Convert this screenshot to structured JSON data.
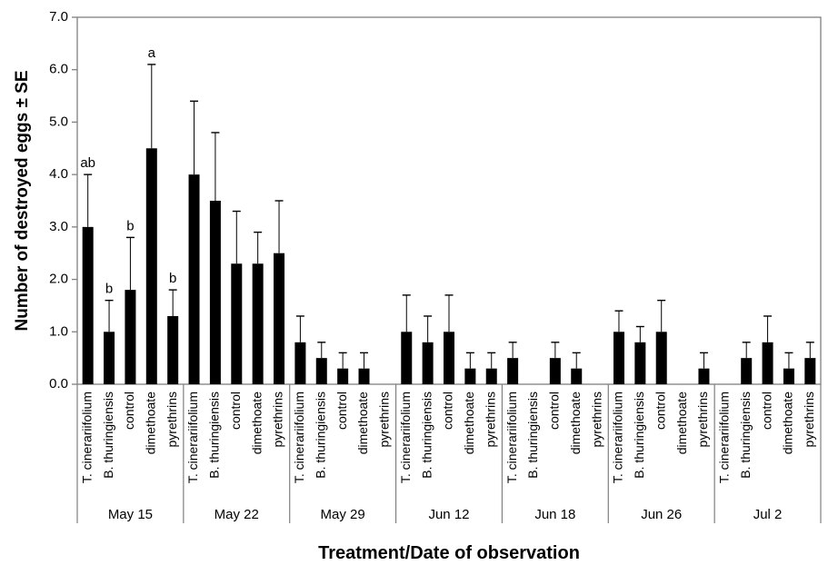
{
  "chart_data": {
    "type": "bar",
    "title": "",
    "xlabel": "Treatment/Date of observation",
    "ylabel": "Number of destroyed eggs ± SE",
    "ylim": [
      0,
      7
    ],
    "ytick_labels": [
      "0.0",
      "1.0",
      "2.0",
      "3.0",
      "4.0",
      "5.0",
      "6.0",
      "7.0"
    ],
    "grid": "off",
    "legend": "none",
    "bar_color": "#000000",
    "axis_color": "#808080",
    "error_bar_color": "#000000",
    "text_color": "#000000",
    "treatments": [
      "T. cinerariifolium",
      "B. thuringiensis",
      "control",
      "dimethoate",
      "pyrethrins"
    ],
    "groups": [
      {
        "date": "May 15",
        "bars": [
          {
            "treatment": "T. cinerariifolium",
            "value": 3.0,
            "error_top": 4.0,
            "letter": "ab"
          },
          {
            "treatment": "B. thuringiensis",
            "value": 1.0,
            "error_top": 1.6,
            "letter": "b"
          },
          {
            "treatment": "control",
            "value": 1.8,
            "error_top": 2.8,
            "letter": "b"
          },
          {
            "treatment": "dimethoate",
            "value": 4.5,
            "error_top": 6.1,
            "letter": "a"
          },
          {
            "treatment": "pyrethrins",
            "value": 1.3,
            "error_top": 1.8,
            "letter": "b"
          }
        ]
      },
      {
        "date": "May 22",
        "bars": [
          {
            "treatment": "T. cinerariifolium",
            "value": 4.0,
            "error_top": 5.4,
            "letter": ""
          },
          {
            "treatment": "B. thuringiensis",
            "value": 3.5,
            "error_top": 4.8,
            "letter": ""
          },
          {
            "treatment": "control",
            "value": 2.3,
            "error_top": 3.3,
            "letter": ""
          },
          {
            "treatment": "dimethoate",
            "value": 2.3,
            "error_top": 2.9,
            "letter": ""
          },
          {
            "treatment": "pyrethrins",
            "value": 2.5,
            "error_top": 3.5,
            "letter": ""
          }
        ]
      },
      {
        "date": "May 29",
        "bars": [
          {
            "treatment": "T. cinerariifolium",
            "value": 0.8,
            "error_top": 1.3,
            "letter": ""
          },
          {
            "treatment": "B. thuringiensis",
            "value": 0.5,
            "error_top": 0.8,
            "letter": ""
          },
          {
            "treatment": "control",
            "value": 0.3,
            "error_top": 0.6,
            "letter": ""
          },
          {
            "treatment": "dimethoate",
            "value": 0.3,
            "error_top": 0.6,
            "letter": ""
          },
          {
            "treatment": "pyrethrins",
            "value": 0,
            "error_top": null,
            "letter": ""
          }
        ]
      },
      {
        "date": "Jun 12",
        "bars": [
          {
            "treatment": "T. cinerariifolium",
            "value": 1.0,
            "error_top": 1.7,
            "letter": ""
          },
          {
            "treatment": "B. thuringiensis",
            "value": 0.8,
            "error_top": 1.3,
            "letter": ""
          },
          {
            "treatment": "control",
            "value": 1.0,
            "error_top": 1.7,
            "letter": ""
          },
          {
            "treatment": "dimethoate",
            "value": 0.3,
            "error_top": 0.6,
            "letter": ""
          },
          {
            "treatment": "pyrethrins",
            "value": 0.3,
            "error_top": 0.6,
            "letter": ""
          }
        ]
      },
      {
        "date": "Jun 18",
        "bars": [
          {
            "treatment": "T. cinerariifolium",
            "value": 0.5,
            "error_top": 0.8,
            "letter": ""
          },
          {
            "treatment": "B. thuringiensis",
            "value": 0,
            "error_top": null,
            "letter": ""
          },
          {
            "treatment": "control",
            "value": 0.5,
            "error_top": 0.8,
            "letter": ""
          },
          {
            "treatment": "dimethoate",
            "value": 0.3,
            "error_top": 0.6,
            "letter": ""
          },
          {
            "treatment": "pyrethrins",
            "value": 0,
            "error_top": null,
            "letter": ""
          }
        ]
      },
      {
        "date": "Jun 26",
        "bars": [
          {
            "treatment": "T. cinerariifolium",
            "value": 1.0,
            "error_top": 1.4,
            "letter": ""
          },
          {
            "treatment": "B. thuringiensis",
            "value": 0.8,
            "error_top": 1.1,
            "letter": ""
          },
          {
            "treatment": "control",
            "value": 1.0,
            "error_top": 1.6,
            "letter": ""
          },
          {
            "treatment": "dimethoate",
            "value": 0,
            "error_top": null,
            "letter": ""
          },
          {
            "treatment": "pyrethrins",
            "value": 0.3,
            "error_top": 0.6,
            "letter": ""
          }
        ]
      },
      {
        "date": "Jul 2",
        "bars": [
          {
            "treatment": "T. cinerariifolium",
            "value": 0,
            "error_top": null,
            "letter": ""
          },
          {
            "treatment": "B. thuringiensis",
            "value": 0.5,
            "error_top": 0.8,
            "letter": ""
          },
          {
            "treatment": "control",
            "value": 0.8,
            "error_top": 1.3,
            "letter": ""
          },
          {
            "treatment": "dimethoate",
            "value": 0.3,
            "error_top": 0.6,
            "letter": ""
          },
          {
            "treatment": "pyrethrins",
            "value": 0.5,
            "error_top": 0.8,
            "letter": ""
          }
        ]
      }
    ]
  }
}
